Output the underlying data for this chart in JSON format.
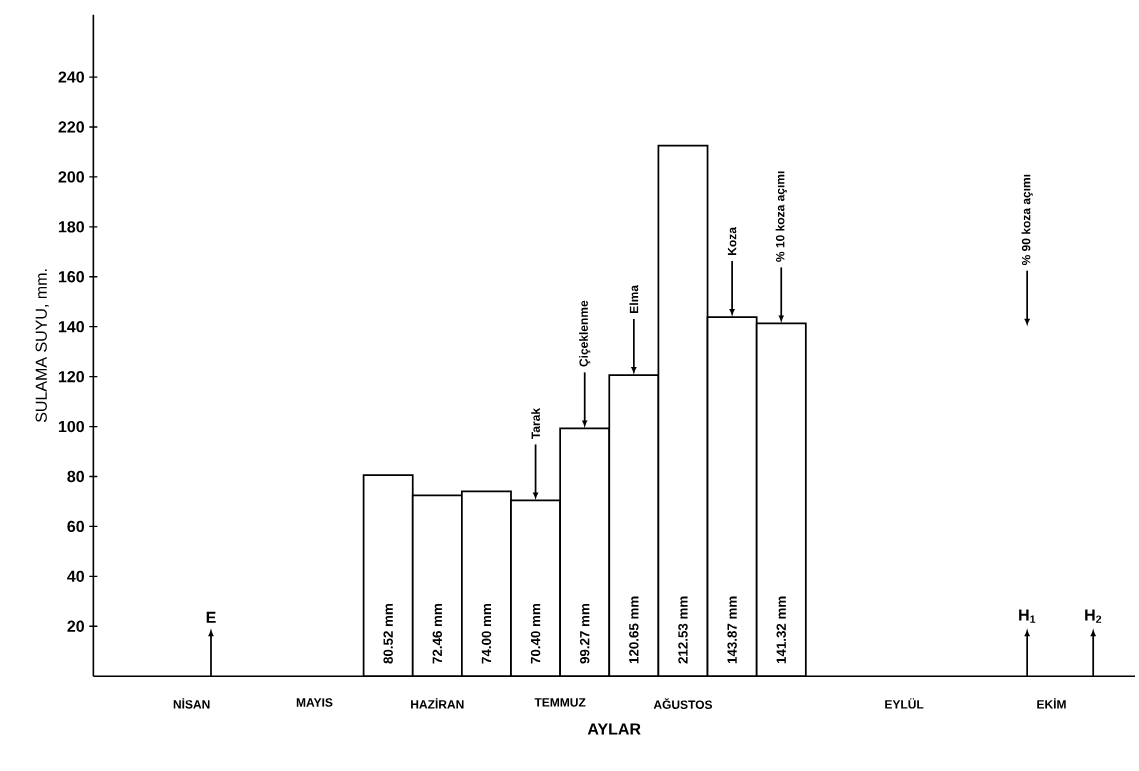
{
  "chart_data": {
    "type": "bar",
    "xlabel": "AYLAR",
    "ylabel": "SULAMA SUYU, mm.",
    "color": "#ffffff",
    "categories": [
      null,
      null,
      null,
      null,
      "NİSAN",
      null,
      null,
      null,
      null,
      "MAYIS",
      null,
      null,
      null,
      null,
      "HAZİRAN",
      null,
      null,
      null,
      null,
      "TEMMUZ",
      null,
      null,
      null,
      null,
      "AĞUSTOS",
      null,
      null,
      null,
      null,
      null,
      null,
      null,
      null,
      "EYLÜL",
      null,
      null,
      null,
      null,
      null,
      "EKİM",
      null,
      null,
      null
    ],
    "values": [
      null,
      null,
      null,
      null,
      null,
      null,
      null,
      null,
      null,
      null,
      null,
      null,
      80.52,
      null,
      72.46,
      null,
      74.0,
      null,
      70.4,
      null,
      99.27,
      null,
      120.65,
      null,
      212.53,
      null,
      143.87,
      null,
      141.32,
      null,
      null,
      null,
      null,
      null,
      null,
      null,
      null,
      null,
      null,
      null,
      null,
      null,
      null
    ],
    "value_labels": [
      null,
      null,
      null,
      null,
      null,
      null,
      null,
      null,
      null,
      null,
      null,
      null,
      "80.52 mm",
      null,
      "72.46 mm",
      null,
      "74.00 mm",
      null,
      "70.40 mm",
      null,
      "99.27 mm",
      null,
      "120.65 mm",
      null,
      "212.53 mm",
      null,
      "143.87 mm",
      null,
      "141.32 mm",
      null,
      null,
      null,
      null,
      null,
      null,
      null,
      null,
      null,
      null,
      null,
      null,
      null,
      null
    ],
    "ylim": [
      0,
      265
    ],
    "yticks": [
      20,
      40,
      60,
      80,
      100,
      120,
      140,
      160,
      180,
      200,
      220,
      240
    ],
    "annotations": [
      {
        "text": "Tarak",
        "y": 70.4
      },
      {
        "text": "Çiçeklenme",
        "y": 99.27
      },
      {
        "text": "Elma",
        "y": 120.65
      },
      {
        "text": "Koza",
        "y": 143.87
      },
      {
        "text": "% 10 koza açımı",
        "y": 141.32
      },
      "% 90 koza açımı",
      "E",
      "H$_{1}$",
      "H$_{2}$"
    ]
  }
}
